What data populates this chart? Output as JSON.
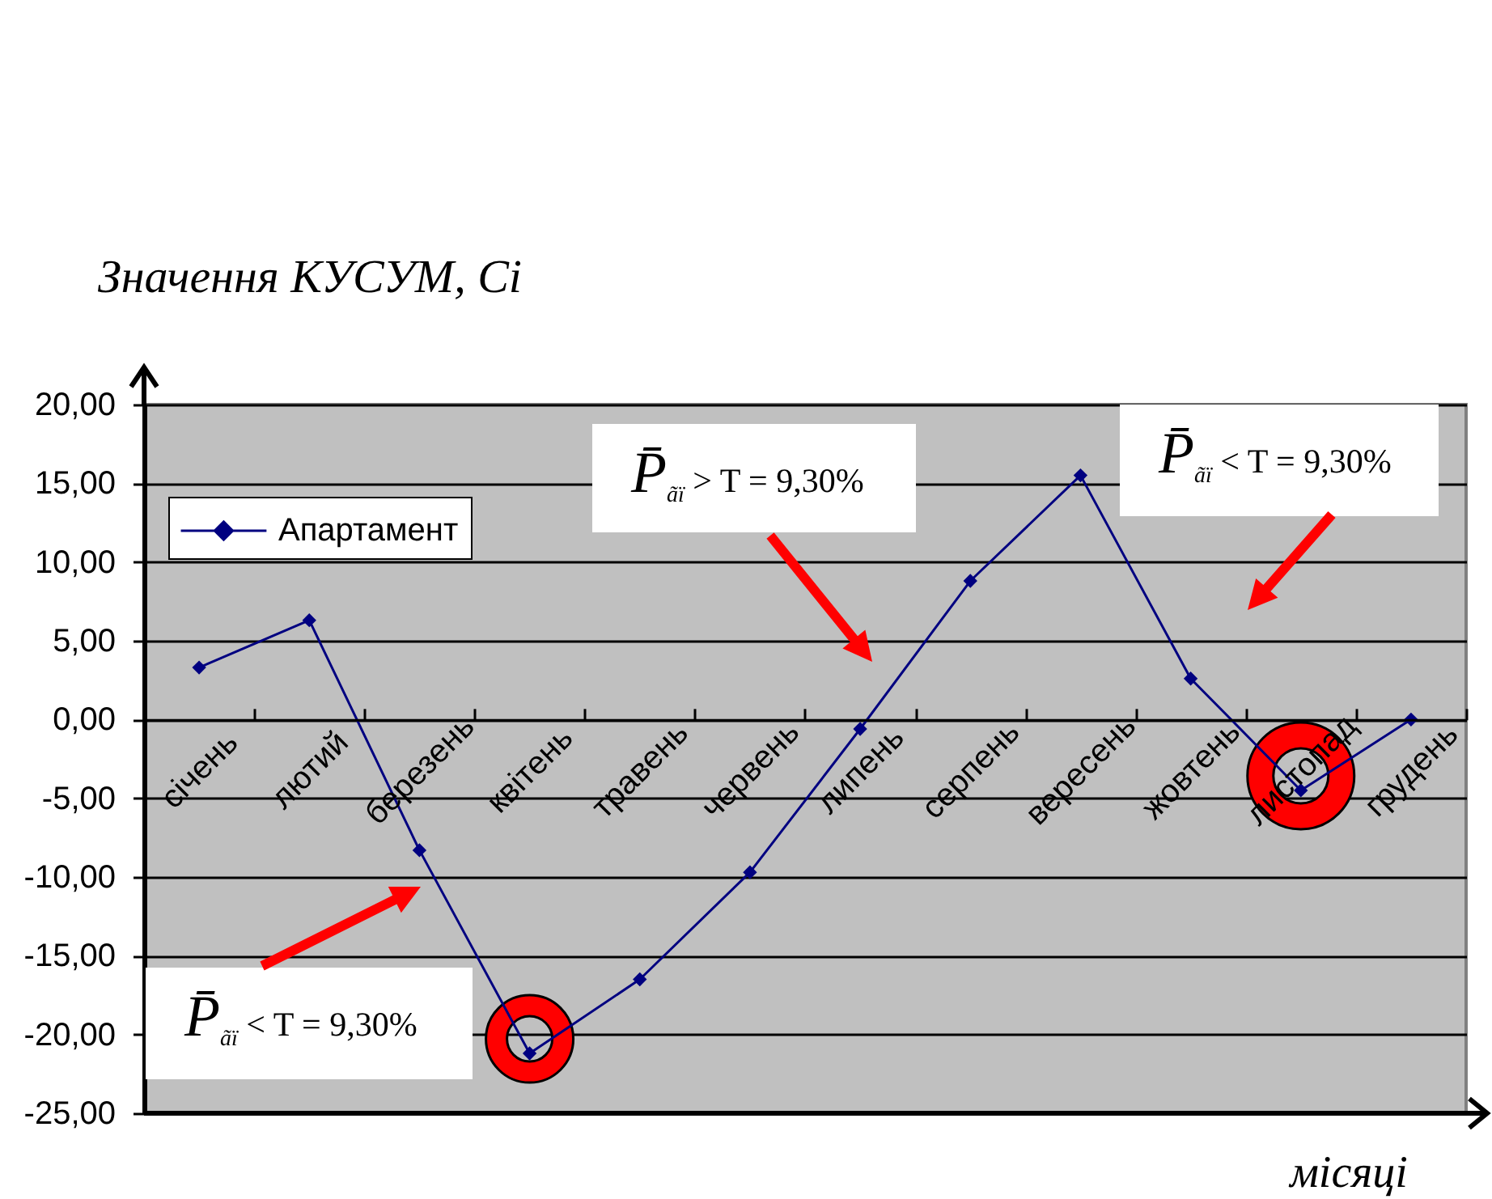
{
  "chart_data": {
    "type": "line",
    "ylabel": "Значення КУСУМ, Сi",
    "xlabel": "місяці",
    "categories": [
      "січень",
      "лютий",
      "березень",
      "квітень",
      "травень",
      "червень",
      "липень",
      "серпень",
      "вересень",
      "жовтень",
      "листопад",
      "грудень"
    ],
    "series": [
      {
        "name": "Апартамент",
        "color": "#000080",
        "values": [
          3.3,
          6.3,
          -8.3,
          -21.2,
          -16.5,
          -9.7,
          -0.6,
          8.8,
          15.5,
          2.6,
          -4.5,
          0.0
        ]
      }
    ],
    "ylim": [
      -25,
      20
    ],
    "yticks": [
      {
        "value": -25,
        "label": "-25,00"
      },
      {
        "value": -20,
        "label": "-20,00"
      },
      {
        "value": -15,
        "label": "-15,00"
      },
      {
        "value": -10,
        "label": "-10,00"
      },
      {
        "value": -5,
        "label": "-5,00"
      },
      {
        "value": 0,
        "label": "0,00"
      },
      {
        "value": 5,
        "label": "5,00"
      },
      {
        "value": 10,
        "label": "10,00"
      },
      {
        "value": 15,
        "label": "15,00"
      },
      {
        "value": 20,
        "label": "20,00"
      }
    ],
    "grid": "y",
    "legend": "top left",
    "marker": "diamond",
    "line_style": "solid",
    "annotations": [
      "P̄$_{ãï}$ > T = 9,30%",
      "P̄$_{ãï}$ < T = 9,30%",
      "P̄$_{ãï}$ < T = 9,30%"
    ]
  }
}
